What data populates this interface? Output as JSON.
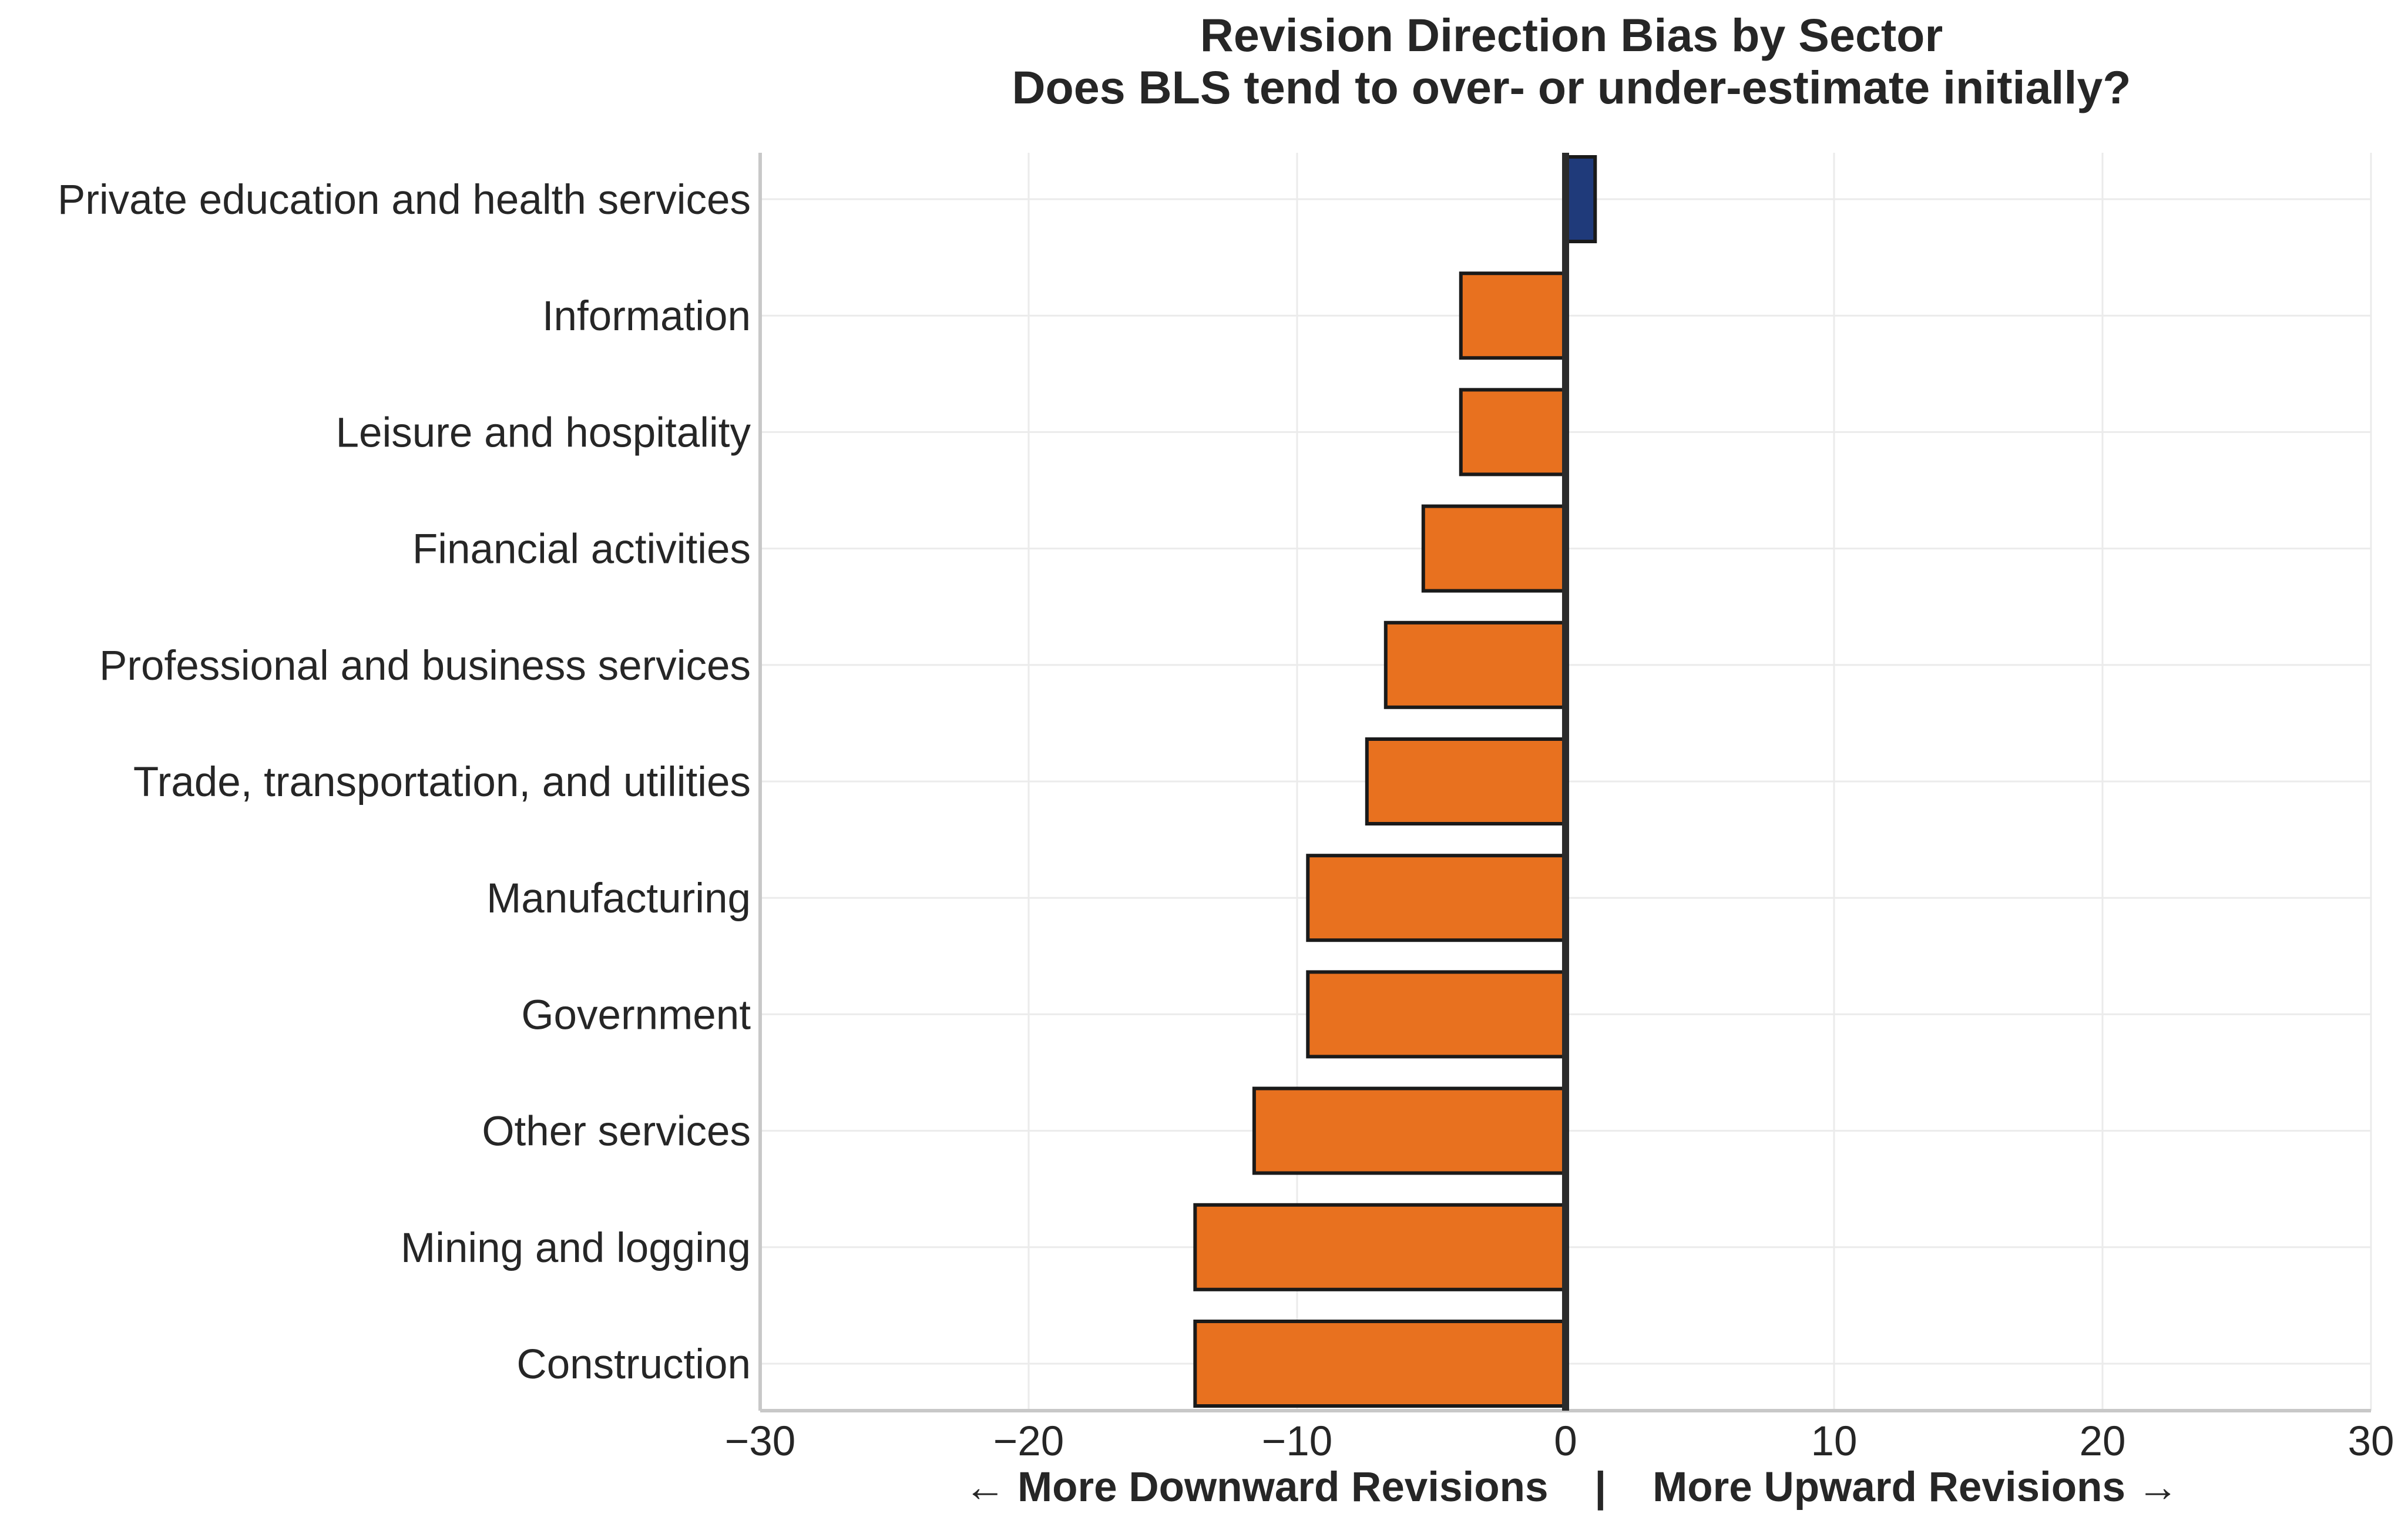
{
  "chart_data": {
    "type": "bar",
    "orientation": "horizontal",
    "title": "Revision Direction Bias by Sector",
    "subtitle": "Does BLS tend to over- or under-estimate initially?",
    "xlabel": "← More Downward Revisions    |    More Upward Revisions →",
    "ylabel": "",
    "xlim": [
      -30,
      30
    ],
    "xticks": [
      -30,
      -20,
      -10,
      0,
      10,
      20,
      30
    ],
    "xtick_labels": [
      "−30",
      "−20",
      "−10",
      "0",
      "10",
      "20",
      "30"
    ],
    "grid": true,
    "categories": [
      "Private education and health services",
      "Information",
      "Leisure and hospitality",
      "Financial activities",
      "Professional and business services",
      "Trade, transportation, and utilities",
      "Manufacturing",
      "Government",
      "Other services",
      "Mining and logging",
      "Construction"
    ],
    "values": [
      1.1,
      -3.9,
      -3.9,
      -5.3,
      -6.7,
      -7.4,
      -9.6,
      -9.6,
      -11.6,
      -13.8,
      -13.8
    ],
    "colors": {
      "positive": "#1f3a7a",
      "negative": "#e8711f"
    }
  }
}
